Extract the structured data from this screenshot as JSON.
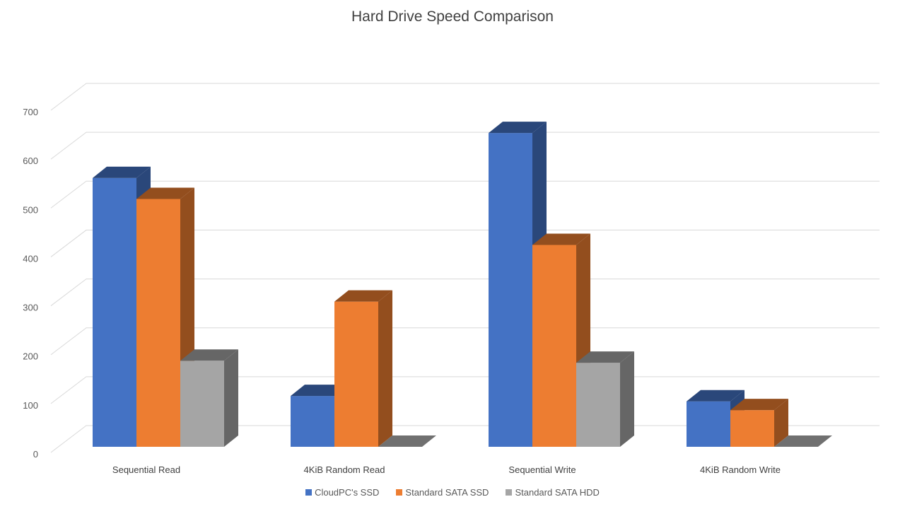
{
  "chart_data": {
    "type": "bar",
    "style": "3d-clustered-column",
    "title": "Hard Drive Speed Comparison",
    "xlabel": "",
    "ylabel": "",
    "categories": [
      "Sequential Read",
      "4KiB Random Read",
      "Sequential Write",
      "4KiB Random Write"
    ],
    "y_ticks": [
      "0",
      "100",
      "200",
      "300",
      "400",
      "500",
      "600",
      "700"
    ],
    "ylim": [
      0,
      700
    ],
    "grid": true,
    "legend_position": "bottom",
    "series": [
      {
        "name": "CloudPC's SSD",
        "color": "#4472C4",
        "values": [
          550,
          104,
          642,
          93
        ]
      },
      {
        "name": "Standard SATA SSD",
        "color": "#ED7D31",
        "values": [
          507,
          297,
          413,
          75
        ]
      },
      {
        "name": "Standard SATA HDD",
        "color": "#A5A5A5",
        "values": [
          176,
          0,
          172,
          0
        ]
      }
    ]
  }
}
